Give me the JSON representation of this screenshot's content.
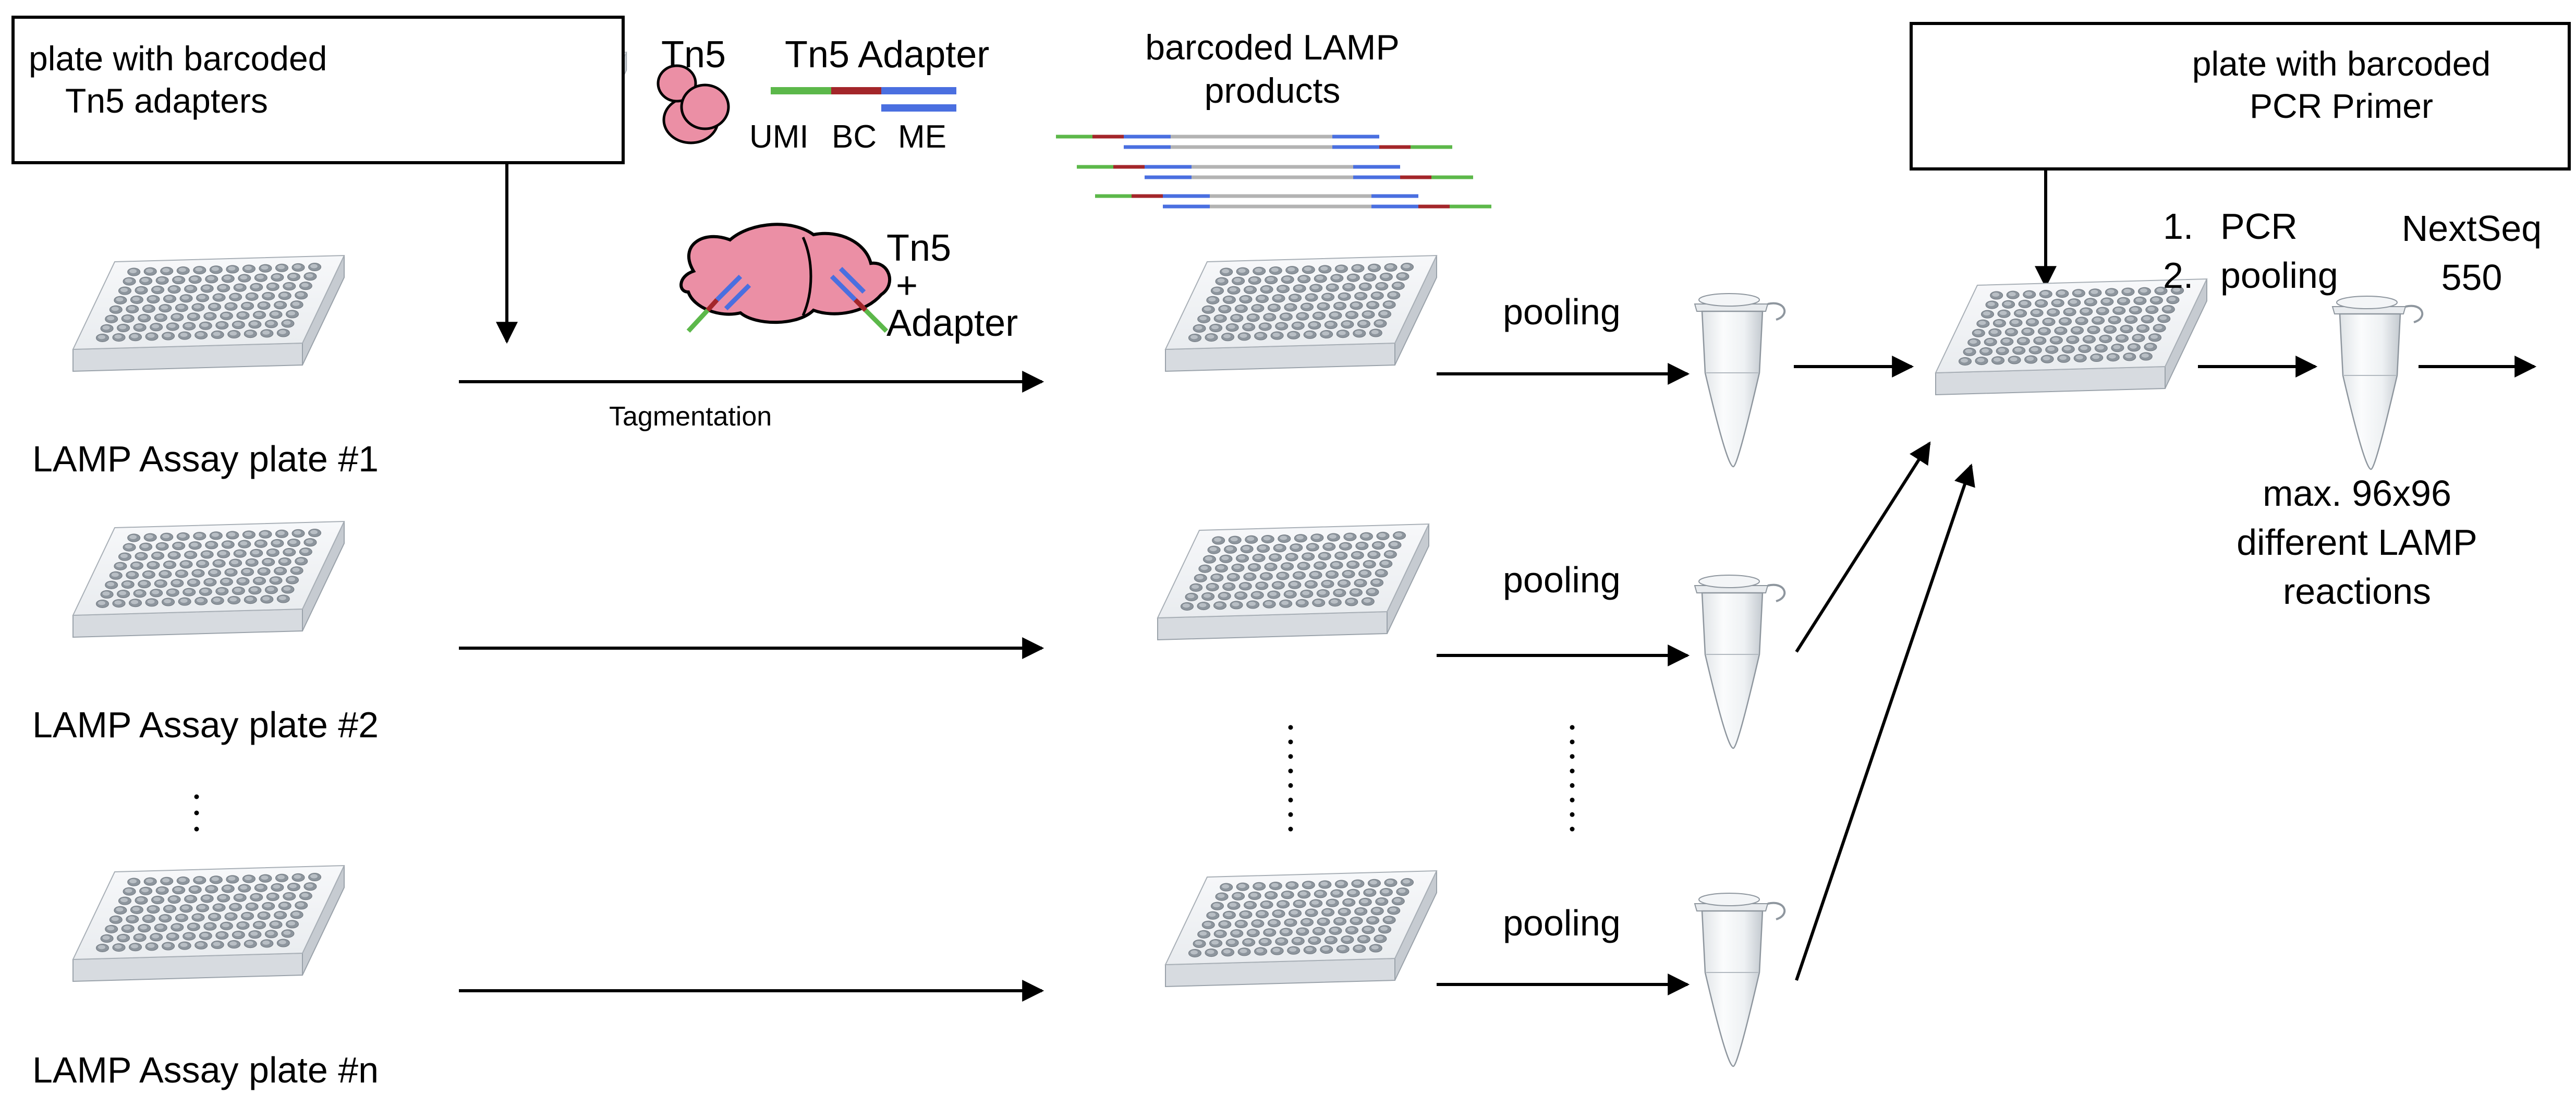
{
  "top_left_box": {
    "label_line1": "plate with barcoded",
    "label_line2": "Tn5 adapters"
  },
  "top_right_box": {
    "label_line1": "plate with barcoded",
    "label_line2": "PCR Primer"
  },
  "tn5": {
    "label": "Tn5"
  },
  "adapter": {
    "title": "Tn5 Adapter",
    "segments": [
      "UMI",
      "BC",
      "ME"
    ],
    "colors": {
      "umi": "#5cb84a",
      "bc": "#a3262a",
      "me": "#4a6fe0",
      "protein": "#eb8fa5"
    }
  },
  "tn5_complex": {
    "line1": "Tn5",
    "line2": "+",
    "line3": "Adapter"
  },
  "lamp_products": {
    "line1": "barcoded LAMP",
    "line2": "products"
  },
  "tagmentation": {
    "label": "Tagmentation"
  },
  "assay_plates": [
    {
      "label": "LAMP Assay plate #1"
    },
    {
      "label": "LAMP Assay plate #2"
    },
    {
      "label": "LAMP Assay plate #n"
    }
  ],
  "pooling": {
    "label": "pooling"
  },
  "steps": {
    "step1_num": "1.",
    "step1": "PCR",
    "step2_num": "2.",
    "step2": "pooling"
  },
  "sequencer": {
    "line1": "NextSeq",
    "line2": "550"
  },
  "capacity": {
    "line1": "max. 96x96",
    "line2": "different LAMP",
    "line3": "reactions"
  }
}
